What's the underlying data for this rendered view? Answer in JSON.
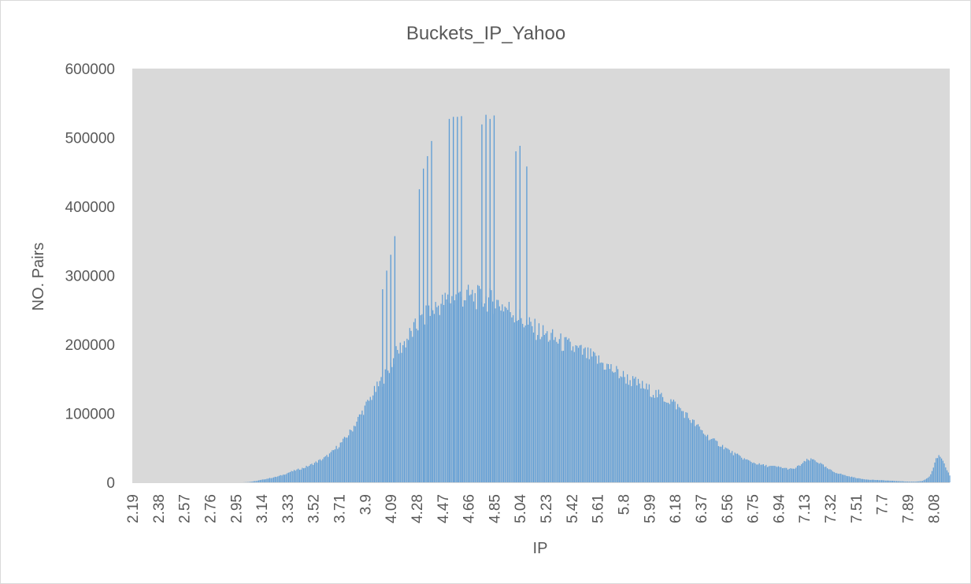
{
  "chart_data": {
    "type": "bar",
    "title": "Buckets_IP_Yahoo",
    "xlabel": "IP",
    "ylabel": "NO. Pairs",
    "ylim": [
      0,
      600000
    ],
    "y_ticks": [
      "0",
      "100000",
      "200000",
      "300000",
      "400000",
      "500000",
      "600000"
    ],
    "x_ticks": [
      "2.19",
      "2.38",
      "2.57",
      "2.76",
      "2.95",
      "3.14",
      "3.33",
      "3.52",
      "3.71",
      "3.9",
      "4.09",
      "4.28",
      "4.47",
      "4.66",
      "4.85",
      "5.04",
      "5.23",
      "5.42",
      "5.61",
      "5.8",
      "5.99",
      "6.18",
      "6.37",
      "6.56",
      "6.75",
      "6.94",
      "7.13",
      "7.32",
      "7.51",
      "7.7",
      "7.89",
      "8.08"
    ],
    "x_range": [
      2.19,
      8.2
    ],
    "bar_step": 0.01,
    "grid": false,
    "legend": "none",
    "colors": {
      "bar": "#5b9bd5",
      "plot_bg": "#d9d9d9",
      "text": "#595959"
    },
    "profile_points": [
      [
        3.0,
        0
      ],
      [
        3.05,
        500
      ],
      [
        3.1,
        2000
      ],
      [
        3.15,
        4000
      ],
      [
        3.2,
        6000
      ],
      [
        3.25,
        8000
      ],
      [
        3.3,
        11000
      ],
      [
        3.35,
        15000
      ],
      [
        3.4,
        18000
      ],
      [
        3.45,
        21000
      ],
      [
        3.5,
        25000
      ],
      [
        3.55,
        30000
      ],
      [
        3.6,
        35000
      ],
      [
        3.65,
        42000
      ],
      [
        3.7,
        52000
      ],
      [
        3.75,
        62000
      ],
      [
        3.8,
        75000
      ],
      [
        3.85,
        92000
      ],
      [
        3.9,
        108000
      ],
      [
        3.95,
        125000
      ],
      [
        4.0,
        140000
      ],
      [
        4.05,
        155000
      ],
      [
        4.1,
        175000
      ],
      [
        4.15,
        192000
      ],
      [
        4.2,
        205000
      ],
      [
        4.25,
        218000
      ],
      [
        4.3,
        230000
      ],
      [
        4.35,
        240000
      ],
      [
        4.4,
        250000
      ],
      [
        4.45,
        258000
      ],
      [
        4.5,
        263000
      ],
      [
        4.55,
        267000
      ],
      [
        4.6,
        269000
      ],
      [
        4.65,
        270000
      ],
      [
        4.7,
        269000
      ],
      [
        4.75,
        267000
      ],
      [
        4.8,
        265000
      ],
      [
        4.85,
        262000
      ],
      [
        4.9,
        258000
      ],
      [
        4.95,
        252000
      ],
      [
        5.0,
        245000
      ],
      [
        5.05,
        237000
      ],
      [
        5.1,
        228000
      ],
      [
        5.15,
        222000
      ],
      [
        5.2,
        217000
      ],
      [
        5.25,
        212000
      ],
      [
        5.3,
        207000
      ],
      [
        5.35,
        202000
      ],
      [
        5.4,
        197000
      ],
      [
        5.45,
        193000
      ],
      [
        5.5,
        188000
      ],
      [
        5.55,
        183000
      ],
      [
        5.6,
        178000
      ],
      [
        5.65,
        172000
      ],
      [
        5.7,
        166000
      ],
      [
        5.75,
        160000
      ],
      [
        5.8,
        154000
      ],
      [
        5.85,
        148000
      ],
      [
        5.9,
        143000
      ],
      [
        5.95,
        138000
      ],
      [
        6.0,
        133000
      ],
      [
        6.05,
        127000
      ],
      [
        6.1,
        122000
      ],
      [
        6.15,
        118000
      ],
      [
        6.2,
        110000
      ],
      [
        6.25,
        100000
      ],
      [
        6.3,
        90000
      ],
      [
        6.35,
        80000
      ],
      [
        6.4,
        70000
      ],
      [
        6.45,
        62000
      ],
      [
        6.5,
        56000
      ],
      [
        6.55,
        50000
      ],
      [
        6.6,
        43000
      ],
      [
        6.65,
        38000
      ],
      [
        6.7,
        33000
      ],
      [
        6.75,
        29000
      ],
      [
        6.8,
        26000
      ],
      [
        6.85,
        24000
      ],
      [
        6.9,
        23000
      ],
      [
        6.95,
        22000
      ],
      [
        7.0,
        20000
      ],
      [
        7.05,
        19000
      ],
      [
        7.1,
        25000
      ],
      [
        7.15,
        32000
      ],
      [
        7.2,
        33000
      ],
      [
        7.25,
        27000
      ],
      [
        7.3,
        20000
      ],
      [
        7.35,
        15000
      ],
      [
        7.4,
        12000
      ],
      [
        7.45,
        9000
      ],
      [
        7.5,
        7000
      ],
      [
        7.55,
        5000
      ],
      [
        7.6,
        4000
      ],
      [
        7.65,
        3500
      ],
      [
        7.7,
        3000
      ],
      [
        7.75,
        2500
      ],
      [
        7.8,
        2000
      ],
      [
        7.85,
        1500
      ],
      [
        7.9,
        1000
      ],
      [
        7.95,
        1000
      ],
      [
        8.0,
        2000
      ],
      [
        8.05,
        8000
      ],
      [
        8.08,
        20000
      ],
      [
        8.1,
        35000
      ],
      [
        8.12,
        38000
      ],
      [
        8.15,
        30000
      ],
      [
        8.18,
        18000
      ],
      [
        8.2,
        10000
      ]
    ],
    "spikes": [
      {
        "x": 4.03,
        "y": 280000
      },
      {
        "x": 4.06,
        "y": 307000
      },
      {
        "x": 4.09,
        "y": 330000
      },
      {
        "x": 4.12,
        "y": 357000
      },
      {
        "x": 4.3,
        "y": 425000
      },
      {
        "x": 4.33,
        "y": 455000
      },
      {
        "x": 4.36,
        "y": 473000
      },
      {
        "x": 4.39,
        "y": 495000
      },
      {
        "x": 4.52,
        "y": 527000
      },
      {
        "x": 4.55,
        "y": 530000
      },
      {
        "x": 4.58,
        "y": 530000
      },
      {
        "x": 4.61,
        "y": 531000
      },
      {
        "x": 4.76,
        "y": 519000
      },
      {
        "x": 4.79,
        "y": 533000
      },
      {
        "x": 4.82,
        "y": 527000
      },
      {
        "x": 4.85,
        "y": 532000
      },
      {
        "x": 5.01,
        "y": 480000
      },
      {
        "x": 5.04,
        "y": 488000
      },
      {
        "x": 5.09,
        "y": 458000
      }
    ]
  }
}
